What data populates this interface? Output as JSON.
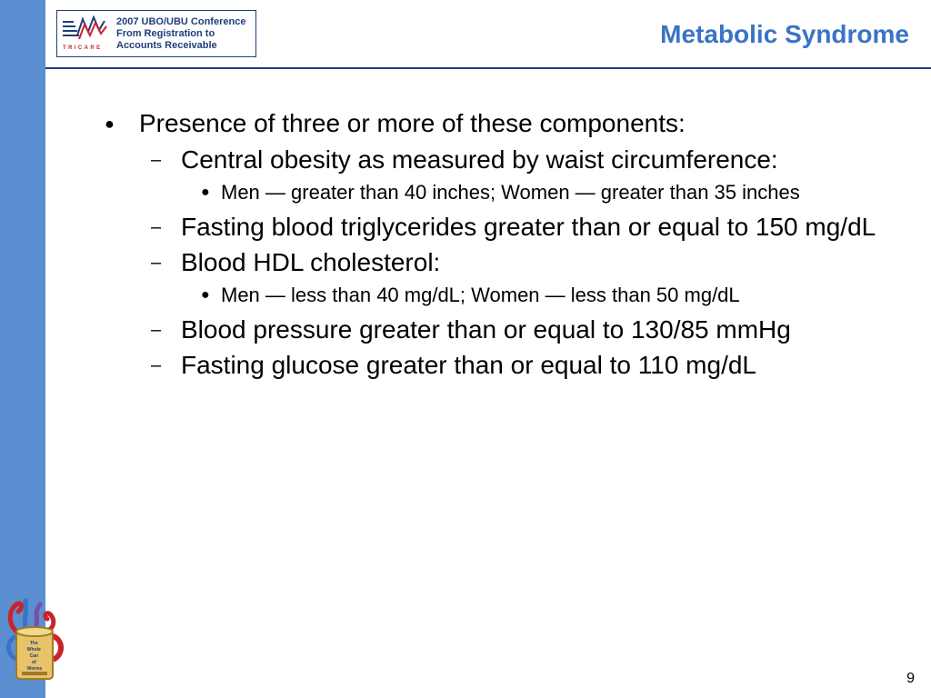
{
  "header": {
    "logo_caption": "TRICARE",
    "conference_lines": [
      "2007 UBO/UBU Conference",
      "From Registration to",
      "Accounts Receivable"
    ],
    "title": "Metabolic Syndrome"
  },
  "body": {
    "intro": "Presence of three or more of these components:",
    "components": [
      {
        "text": "Central obesity as measured by waist circumference:",
        "detail": "Men — greater than 40 inches; Women — greater than 35 inches"
      },
      {
        "text": "Fasting blood triglycerides greater than or equal to 150 mg/dL"
      },
      {
        "text": "Blood HDL cholesterol:",
        "detail": "Men — less than 40 mg/dL; Women — less than 50 mg/dL"
      },
      {
        "text": "Blood pressure greater than or equal to 130/85 mmHg"
      },
      {
        "text": "Fasting glucose greater than or equal to 110 mg/dL"
      }
    ]
  },
  "mascot": {
    "can_text": [
      "The",
      "Whole",
      "Can",
      "of",
      "Worms"
    ]
  },
  "footer": {
    "page_number": "9"
  },
  "colors": {
    "sidebar": "#5b8fd1",
    "title": "#3a73c6",
    "rule": "#1f3f7a"
  }
}
